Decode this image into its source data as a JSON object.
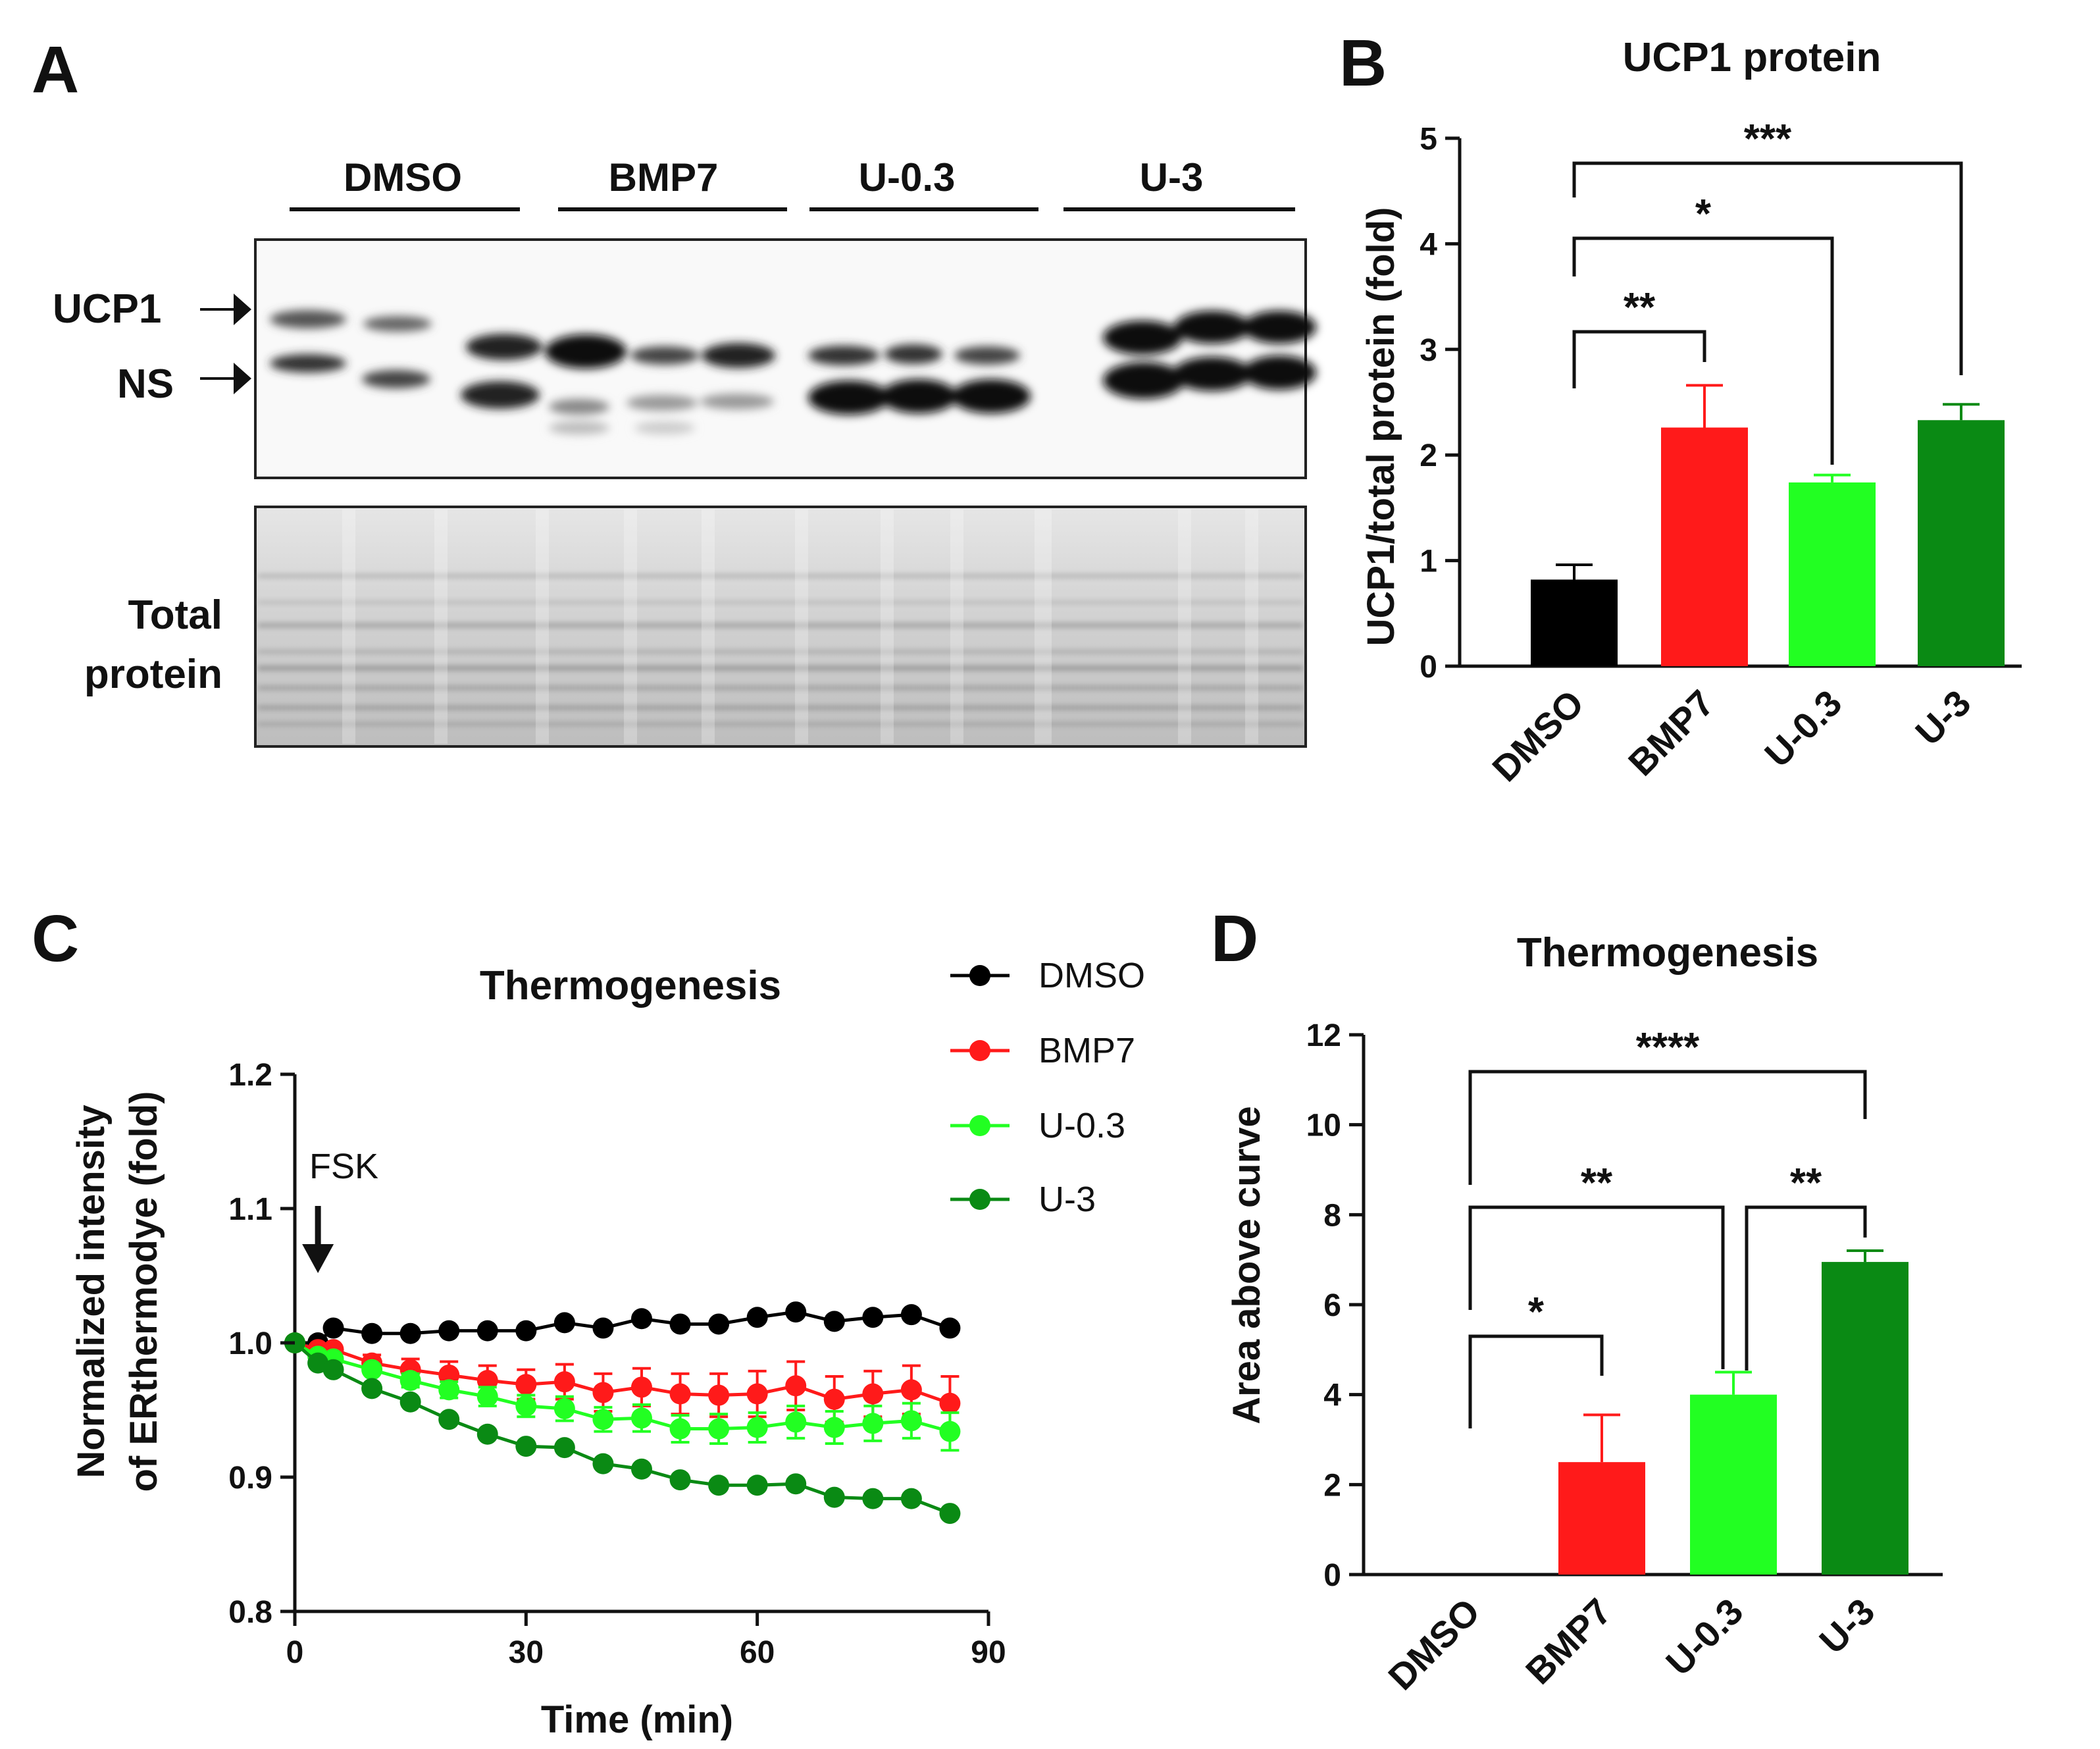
{
  "panel_labels": {
    "a": "A",
    "b": "B",
    "c": "C",
    "d": "D"
  },
  "blot": {
    "lanes": [
      "DMSO",
      "BMP7",
      "U-0.3",
      "U-3"
    ],
    "band_ucp1": "UCP1",
    "band_ns": "NS",
    "total_line1": "Total",
    "total_line2": "protein"
  },
  "colors": {
    "DMSO": "#000000",
    "BMP7": "#ff1a1a",
    "U-0.3": "#22ff22",
    "U-3": "#0a8a14"
  },
  "chart_data": [
    {
      "id": "B",
      "type": "bar",
      "title": "UCP1 protein",
      "ylabel": "UCP1/total protein (fold)",
      "xlabel": "",
      "categories": [
        "DMSO",
        "BMP7",
        "U-0.3",
        "U-3"
      ],
      "values": [
        0.82,
        2.26,
        1.74,
        2.33
      ],
      "errors": [
        0.14,
        0.4,
        0.07,
        0.15
      ],
      "ylim": [
        0,
        5
      ],
      "yticks": [
        "0",
        "1",
        "2",
        "3",
        "4",
        "5"
      ],
      "significance": [
        {
          "from": "DMSO",
          "to": "BMP7",
          "label": "**"
        },
        {
          "from": "DMSO",
          "to": "U-0.3",
          "label": "*"
        },
        {
          "from": "DMSO",
          "to": "U-3",
          "label": "***"
        }
      ]
    },
    {
      "id": "C",
      "type": "line",
      "title": "Thermogenesis",
      "ylabel_line1": "Normalized intensity",
      "ylabel_line2": "of ERthermodye (fold)",
      "xlabel": "Time (min)",
      "xlim": [
        0,
        90
      ],
      "ylim": [
        0.8,
        1.2
      ],
      "xticks": [
        "0",
        "30",
        "60",
        "90"
      ],
      "yticks": [
        "0.8",
        "0.9",
        "1.0",
        "1.1",
        "1.2"
      ],
      "annotation": "FSK",
      "annotation_x": 3,
      "x": [
        0,
        3,
        5,
        10,
        15,
        20,
        25,
        30,
        35,
        40,
        45,
        50,
        55,
        60,
        65,
        70,
        75,
        80,
        85
      ],
      "series": [
        {
          "name": "DMSO",
          "values": [
            1.0,
            1.0,
            1.011,
            1.007,
            1.007,
            1.009,
            1.009,
            1.009,
            1.015,
            1.011,
            1.018,
            1.014,
            1.014,
            1.019,
            1.023,
            1.016,
            1.019,
            1.021,
            1.011
          ],
          "errors": [
            0,
            0,
            0.003,
            0.003,
            0.003,
            0.003,
            0.003,
            0.003,
            0.004,
            0.003,
            0.004,
            0.003,
            0.003,
            0.004,
            0.004,
            0.003,
            0.003,
            0.004,
            0.004
          ]
        },
        {
          "name": "BMP7",
          "values": [
            1.0,
            0.995,
            0.995,
            0.985,
            0.98,
            0.976,
            0.972,
            0.969,
            0.971,
            0.963,
            0.967,
            0.962,
            0.961,
            0.962,
            0.968,
            0.958,
            0.962,
            0.965,
            0.955
          ],
          "errors": [
            0,
            0.003,
            0.004,
            0.006,
            0.008,
            0.01,
            0.011,
            0.011,
            0.013,
            0.014,
            0.014,
            0.015,
            0.016,
            0.017,
            0.018,
            0.017,
            0.017,
            0.018,
            0.02
          ]
        },
        {
          "name": "U-0.3",
          "values": [
            1.0,
            0.99,
            0.988,
            0.98,
            0.972,
            0.965,
            0.96,
            0.953,
            0.951,
            0.943,
            0.944,
            0.936,
            0.936,
            0.937,
            0.941,
            0.937,
            0.94,
            0.942,
            0.934
          ],
          "errors": [
            0,
            0.003,
            0.003,
            0.004,
            0.005,
            0.006,
            0.007,
            0.008,
            0.009,
            0.009,
            0.01,
            0.01,
            0.011,
            0.011,
            0.012,
            0.012,
            0.013,
            0.013,
            0.014
          ]
        },
        {
          "name": "U-3",
          "values": [
            1.0,
            0.985,
            0.98,
            0.966,
            0.956,
            0.943,
            0.932,
            0.923,
            0.922,
            0.91,
            0.906,
            0.898,
            0.894,
            0.894,
            0.895,
            0.885,
            0.884,
            0.884,
            0.873
          ],
          "errors": [
            0,
            0.002,
            0.002,
            0.002,
            0.002,
            0.002,
            0.002,
            0.002,
            0.002,
            0.002,
            0.002,
            0.002,
            0.002,
            0.002,
            0.002,
            0.002,
            0.002,
            0.002,
            0.002
          ]
        }
      ]
    },
    {
      "id": "D",
      "type": "bar",
      "title": "Thermogenesis",
      "ylabel": "Area above curve",
      "xlabel": "",
      "categories": [
        "DMSO",
        "BMP7",
        "U-0.3",
        "U-3"
      ],
      "values": [
        0,
        2.5,
        4.0,
        6.95
      ],
      "errors": [
        0,
        1.05,
        0.5,
        0.25
      ],
      "ylim": [
        0,
        12
      ],
      "yticks": [
        "0",
        "2",
        "4",
        "6",
        "8",
        "10",
        "12"
      ],
      "significance": [
        {
          "from": "DMSO",
          "to": "BMP7",
          "label": "*"
        },
        {
          "from": "DMSO",
          "to": "U-0.3",
          "label": "**"
        },
        {
          "from": "U-0.3",
          "to": "U-3",
          "label": "**"
        },
        {
          "from": "DMSO",
          "to": "U-3",
          "label": "****"
        }
      ]
    }
  ]
}
